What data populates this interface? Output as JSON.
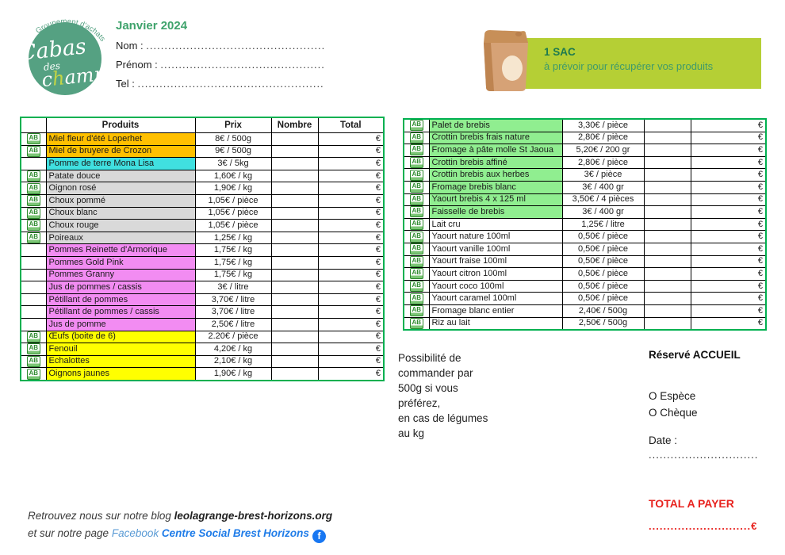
{
  "logo": {
    "arc_text": "Groupement d'achats",
    "word1": "Cabas",
    "word2": "des",
    "word3_pre": "c",
    "word3_accent": "h",
    "word3_post": "amps",
    "circle_color": "#55A182",
    "accent_color": "#C3D545"
  },
  "header": {
    "month_title": "Janvier 2024",
    "fields": [
      {
        "label": "Nom : ",
        "dots": "......................................................................."
      },
      {
        "label": "Prénom : ",
        "dots": "......................................................................."
      },
      {
        "label": "Tel : ",
        "dots": "......................................................................."
      }
    ]
  },
  "bag_banner": {
    "title": "1 SAC",
    "subtitle": "à prévoir pour récupérer vos produits",
    "banner_color": "#B5CF35",
    "title_color": "#1E7A4F",
    "subtitle_color": "#3E9A6B"
  },
  "left_table": {
    "headers": [
      "Produits",
      "Prix",
      "Nombre",
      "Total"
    ],
    "rows": [
      {
        "ab": true,
        "product": "Miel fleur d'été Loperhet",
        "price": "8€ / 500g",
        "nombre": "",
        "total": "€",
        "bg": "#FFC000"
      },
      {
        "ab": true,
        "product": "Miel de bruyere de Crozon",
        "price": "9€ / 500g",
        "nombre": "",
        "total": "€",
        "bg": "#FFC000"
      },
      {
        "ab": false,
        "product": "Pomme de terre Mona Lisa",
        "price": "3€ / 5kg",
        "nombre": "",
        "total": "€",
        "bg": "#40E0E0"
      },
      {
        "ab": true,
        "product": "Patate douce",
        "price": "1,60€ / kg",
        "nombre": "",
        "total": "€",
        "bg": "#D9D9D9"
      },
      {
        "ab": true,
        "product": "Oignon rosé",
        "price": "1,90€ / kg",
        "nombre": "",
        "total": "€",
        "bg": "#D9D9D9"
      },
      {
        "ab": true,
        "product": "Choux pommé",
        "price": "1,05€ / pièce",
        "nombre": "",
        "total": "€",
        "bg": "#D9D9D9"
      },
      {
        "ab": true,
        "product": "Choux blanc",
        "price": "1,05€ / pièce",
        "nombre": "",
        "total": "€",
        "bg": "#D9D9D9"
      },
      {
        "ab": true,
        "product": "Choux rouge",
        "price": "1,05€ / pièce",
        "nombre": "",
        "total": "€",
        "bg": "#D9D9D9"
      },
      {
        "ab": true,
        "product": "Poireaux",
        "price": "1,25€ / kg",
        "nombre": "",
        "total": "€",
        "bg": "#D9D9D9"
      },
      {
        "ab": false,
        "product": "Pommes Reinette d'Armorique",
        "price": "1,75€ / kg",
        "nombre": "",
        "total": "€",
        "bg": "#F28CF2"
      },
      {
        "ab": false,
        "product": "Pommes Gold Pink",
        "price": "1,75€ / kg",
        "nombre": "",
        "total": "€",
        "bg": "#F28CF2"
      },
      {
        "ab": false,
        "product": "Pommes Granny",
        "price": "1,75€ / kg",
        "nombre": "",
        "total": "€",
        "bg": "#F28CF2"
      },
      {
        "ab": false,
        "product": "Jus de pommes / cassis",
        "price": "3€ / litre",
        "nombre": "",
        "total": "€",
        "bg": "#F28CF2"
      },
      {
        "ab": false,
        "product": "Pétillant de pommes",
        "price": "3,70€ / litre",
        "nombre": "",
        "total": "€",
        "bg": "#F28CF2"
      },
      {
        "ab": false,
        "product": "Pétillant de pommes / cassis",
        "price": "3,70€ / litre",
        "nombre": "",
        "total": "€",
        "bg": "#F28CF2"
      },
      {
        "ab": false,
        "product": "Jus de pomme",
        "price": "2,50€ / litre",
        "nombre": "",
        "total": "€",
        "bg": "#F28CF2"
      },
      {
        "ab": true,
        "product": "Œufs (boite de 6)",
        "price": "2.20€ / pièce",
        "nombre": "",
        "total": "€",
        "bg": "#FFFF00"
      },
      {
        "ab": true,
        "product": "Fenouil",
        "price": "4,20€ / kg",
        "nombre": "",
        "total": "€",
        "bg": "#FFFF00"
      },
      {
        "ab": true,
        "product": "Echalottes",
        "price": "2,10€ / kg",
        "nombre": "",
        "total": "€",
        "bg": "#FFFF00"
      },
      {
        "ab": true,
        "product": "Oignons jaunes",
        "price": "1,90€ / kg",
        "nombre": "",
        "total": "€",
        "bg": "#FFFF00"
      }
    ]
  },
  "right_table": {
    "rows": [
      {
        "ab": true,
        "product": "Palet de brebis",
        "price": "3,30€ / pièce",
        "nombre": "",
        "total": "€",
        "bg": "#90EE90"
      },
      {
        "ab": true,
        "product": "Crottin brebis frais nature",
        "price": "2,80€ / pièce",
        "nombre": "",
        "total": "€",
        "bg": "#90EE90"
      },
      {
        "ab": true,
        "product": "Fromage à pâte molle St Jaoua",
        "price": "5,20€ / 200 gr",
        "nombre": "",
        "total": "€",
        "bg": "#90EE90"
      },
      {
        "ab": true,
        "product": "Crottin brebis affiné",
        "price": "2,80€ / pièce",
        "nombre": "",
        "total": "€",
        "bg": "#90EE90"
      },
      {
        "ab": true,
        "product": "Crottin brebis aux herbes",
        "price": "3€ / pièce",
        "nombre": "",
        "total": "€",
        "bg": "#90EE90"
      },
      {
        "ab": true,
        "product": "Fromage brebis blanc",
        "price": "3€ / 400 gr",
        "nombre": "",
        "total": "€",
        "bg": "#90EE90"
      },
      {
        "ab": true,
        "product": "Yaourt brebis 4 x 125 ml",
        "price": "3,50€ / 4 pièces",
        "nombre": "",
        "total": "€",
        "bg": "#90EE90"
      },
      {
        "ab": true,
        "product": "Faisselle de brebis",
        "price": "3€ / 400 gr",
        "nombre": "",
        "total": "€",
        "bg": "#90EE90"
      },
      {
        "ab": true,
        "product": "Lait cru",
        "price": "1,25€ / litre",
        "nombre": "",
        "total": "€",
        "bg": "#FFFFFF"
      },
      {
        "ab": true,
        "product": "Yaourt nature 100ml",
        "price": "0,50€ / pièce",
        "nombre": "",
        "total": "€",
        "bg": "#FFFFFF"
      },
      {
        "ab": true,
        "product": "Yaourt vanille 100ml",
        "price": "0,50€ / pièce",
        "nombre": "",
        "total": "€",
        "bg": "#FFFFFF"
      },
      {
        "ab": true,
        "product": "Yaourt fraise 100ml",
        "price": "0,50€ / pièce",
        "nombre": "",
        "total": "€",
        "bg": "#FFFFFF"
      },
      {
        "ab": true,
        "product": "Yaourt citron 100ml",
        "price": "0,50€ / pièce",
        "nombre": "",
        "total": "€",
        "bg": "#FFFFFF"
      },
      {
        "ab": true,
        "product": "Yaourt coco 100ml",
        "price": "0,50€ / pièce",
        "nombre": "",
        "total": "€",
        "bg": "#FFFFFF"
      },
      {
        "ab": true,
        "product": "Yaourt caramel 100ml",
        "price": "0,50€ / pièce",
        "nombre": "",
        "total": "€",
        "bg": "#FFFFFF"
      },
      {
        "ab": true,
        "product": "Fromage blanc entier",
        "price": "2,40€ / 500g",
        "nombre": "",
        "total": "€",
        "bg": "#FFFFFF"
      },
      {
        "ab": true,
        "product": "Riz au lait",
        "price": "2,50€ / 500g",
        "nombre": "",
        "total": "€",
        "bg": "#FFFFFF"
      }
    ]
  },
  "order_note": {
    "lines": [
      "Possibilité de",
      "commander par",
      "500g si vous",
      "préférez,",
      "en cas de légumes",
      "au kg"
    ]
  },
  "reserved": {
    "title": "Réservé ACCUEIL",
    "option1": "O Espèce",
    "option2": "O Chèque",
    "date_label": "Date :",
    "date_dots": "..............................",
    "total_label": "TOTAL A PAYER",
    "total_value": "............................€",
    "total_color": "#E8231F"
  },
  "footer": {
    "line1_prefix": "Retrouvez nous sur notre blog ",
    "line1_site": "leolagrange-brest-horizons.org",
    "line2_prefix": "et sur notre page ",
    "facebook_word": "Facebook",
    "page_name": "Centre Social Brest Horizons",
    "facebook_icon": "f",
    "facebook_blue": "#1877F2"
  },
  "table_style": {
    "border_green": "#00B050",
    "ab_icon": "ab-organic-label"
  }
}
